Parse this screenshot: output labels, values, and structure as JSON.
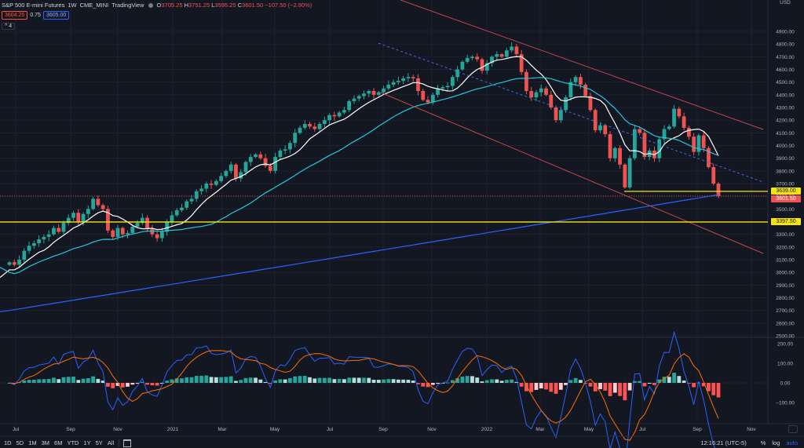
{
  "header": {
    "symbol": "S&P 500 E-mini Futures",
    "interval": "1W",
    "exchange": "CME_MINI",
    "source": "TradingView",
    "open_label": "O",
    "open": "3705.25",
    "high_label": "H",
    "high": "3751.25",
    "low_label": "L",
    "low": "3595.25",
    "close_label": "C",
    "close": "3601.50",
    "change": "−107.50 (−2.90%)"
  },
  "quote": {
    "bid": "3604.25",
    "spread": "0.75",
    "ask": "3605.00"
  },
  "indicators": {
    "toggle": "^",
    "count": "4"
  },
  "price_axis": {
    "ticks": [
      "4900.00",
      "4800.00",
      "4700.00",
      "4600.00",
      "4500.00",
      "4400.00",
      "4300.00",
      "4200.00",
      "4100.00",
      "4000.00",
      "3900.00",
      "3800.00",
      "3700.00",
      "3600.00",
      "3500.00",
      "3400.00",
      "3300.00",
      "3200.00",
      "3100.00",
      "3000.00",
      "2900.00",
      "2800.00",
      "2700.00",
      "2600.00",
      "2500.00"
    ],
    "unit": "USD"
  },
  "macd_axis": {
    "ticks": [
      "200.00",
      "100.00",
      "0.00",
      "−100.00"
    ]
  },
  "price_tags": {
    "support_high": "3639.00",
    "last": "3601.50",
    "support_low": "3397.50"
  },
  "time_axis": {
    "labels": [
      "Jul",
      "Sep",
      "Nov",
      "2021",
      "Mar",
      "May",
      "Jul",
      "Sep",
      "Nov",
      "2022",
      "Mar",
      "May",
      "Jul",
      "Sep",
      "Nov"
    ]
  },
  "bottom_bar": {
    "ranges": [
      "1D",
      "5D",
      "1M",
      "3M",
      "6M",
      "YTD",
      "1Y",
      "5Y",
      "All"
    ],
    "time": "12:16:21 (UTC-5)",
    "percent": "%",
    "log": "log",
    "auto": "auto"
  },
  "colors": {
    "background": "#131722",
    "up": "#26a69a",
    "down": "#ef5350",
    "ma20": "#ffffff",
    "ma50": "#26c6da",
    "ma200": "#2962ff",
    "support": "#f5e513",
    "channel": "#c2474b"
  },
  "chart_data": {
    "type": "candlestick",
    "series": [
      {
        "name": "weekly_closes",
        "values": [
          3080,
          3060,
          3100,
          3170,
          3210,
          3230,
          3260,
          3280,
          3300,
          3350,
          3320,
          3390,
          3430,
          3470,
          3400,
          3460,
          3500,
          3580,
          3530,
          3500,
          3330,
          3280,
          3350,
          3300,
          3310,
          3360,
          3390,
          3430,
          3340,
          3300,
          3270,
          3320,
          3400,
          3450,
          3490,
          3510,
          3560,
          3580,
          3640,
          3660,
          3700,
          3690,
          3720,
          3760,
          3800,
          3850,
          3740,
          3790,
          3870,
          3910,
          3930,
          3900,
          3840,
          3800,
          3910,
          3960,
          3970,
          4020,
          4100,
          4140,
          4170,
          4150,
          4130,
          4170,
          4200,
          4240,
          4230,
          4260,
          4280,
          4350,
          4370,
          4390,
          4410,
          4430,
          4400,
          4420,
          4450,
          4480,
          4500,
          4510,
          4530,
          4540,
          4530,
          4430,
          4360,
          4340,
          4400,
          4450,
          4460,
          4470,
          4540,
          4600,
          4660,
          4690,
          4700,
          4680,
          4590,
          4650,
          4700,
          4720,
          4700,
          4750,
          4780,
          4720,
          4580,
          4430,
          4380,
          4420,
          4450,
          4400,
          4300,
          4200,
          4280,
          4380,
          4500,
          4540,
          4480,
          4390,
          4280,
          4120,
          4160,
          4090,
          3900,
          3980,
          3850,
          3670,
          3900,
          4130,
          4100,
          3910,
          3960,
          3900,
          4050,
          4130,
          4150,
          4290,
          4230,
          4140,
          4070,
          3950,
          4080,
          3980,
          3830,
          3700,
          3601.5
        ]
      },
      {
        "name": "MA 20",
        "note": "white"
      },
      {
        "name": "MA 50",
        "note": "cyan"
      },
      {
        "name": "MA 200",
        "note": "blue"
      }
    ],
    "ylim": [
      2450,
      5000
    ],
    "support_levels": [
      3639.0,
      3397.5
    ],
    "last_price": 3601.5,
    "macd": {
      "ylim": [
        -180,
        200
      ]
    }
  }
}
